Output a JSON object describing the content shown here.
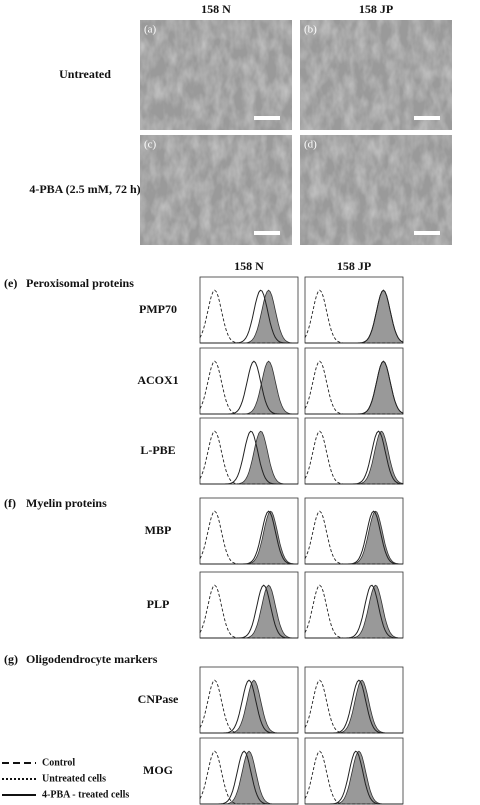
{
  "header": {
    "columns": [
      "158 N",
      "158 JP"
    ]
  },
  "images": {
    "labels": [
      "(a)",
      "(b)",
      "(c)",
      "(d)"
    ],
    "rows": [
      "Untreated",
      "4-PBA (2.5 mM, 72 h)"
    ]
  },
  "sections": [
    {
      "label": "(e)",
      "title": "Peroxisomal proteins",
      "columns": [
        "158 N",
        "158 JP"
      ],
      "rows": [
        "PMP70",
        "ACOX1",
        "L-PBE"
      ]
    },
    {
      "label": "(f)",
      "title": "Myelin proteins",
      "rows": [
        "MBP",
        "PLP"
      ]
    },
    {
      "label": "(g)",
      "title": "Oligodendrocyte markers",
      "rows": [
        "CNPase",
        "MOG"
      ]
    }
  ],
  "legend": [
    "Control",
    "Untreated cells",
    "4-PBA - treated cells"
  ]
}
